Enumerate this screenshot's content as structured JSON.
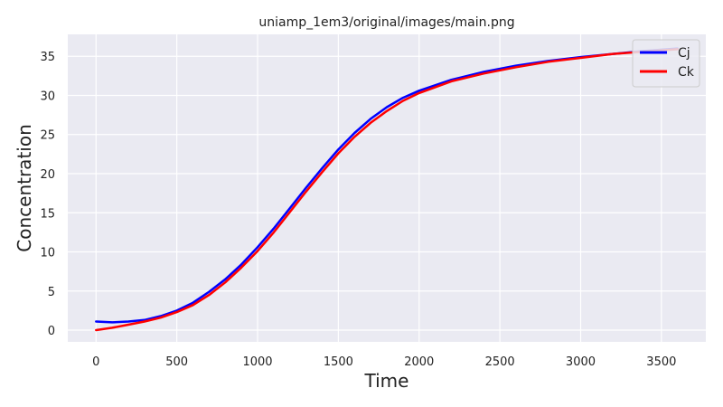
{
  "chart_data": {
    "type": "line",
    "title": "uniamp_1em3/original/images/main.png",
    "xlabel": "Time",
    "ylabel": "Concentration",
    "xlim": [
      -175,
      3775
    ],
    "ylim": [
      -1.5,
      37.8
    ],
    "xticks": [
      0,
      500,
      1000,
      1500,
      2000,
      2500,
      3000,
      3500
    ],
    "yticks": [
      0,
      5,
      10,
      15,
      20,
      25,
      30,
      35
    ],
    "xtick_labels": [
      "0",
      "500",
      "1000",
      "1500",
      "2000",
      "2500",
      "3000",
      "3500"
    ],
    "ytick_labels": [
      "0",
      "5",
      "10",
      "15",
      "20",
      "25",
      "30",
      "35"
    ],
    "grid": true,
    "legend_position": "top-right",
    "background_color": "#eaeaf2",
    "grid_color": "#ffffff",
    "series": [
      {
        "name": "Cj",
        "color": "#0000ff",
        "x": [
          0,
          100,
          200,
          300,
          400,
          500,
          600,
          700,
          800,
          900,
          1000,
          1100,
          1200,
          1300,
          1400,
          1500,
          1600,
          1700,
          1800,
          1900,
          2000,
          2200,
          2400,
          2600,
          2800,
          3000,
          3200,
          3400,
          3600
        ],
        "y": [
          1.1,
          1.0,
          1.1,
          1.3,
          1.8,
          2.5,
          3.5,
          4.9,
          6.5,
          8.4,
          10.6,
          13.0,
          15.6,
          18.2,
          20.7,
          23.1,
          25.2,
          27.0,
          28.5,
          29.7,
          30.6,
          32.0,
          33.0,
          33.8,
          34.4,
          34.9,
          35.3,
          35.7,
          36.0
        ]
      },
      {
        "name": "Ck",
        "color": "#ff0000",
        "x": [
          0,
          100,
          200,
          300,
          400,
          500,
          600,
          700,
          800,
          900,
          1000,
          1100,
          1200,
          1300,
          1400,
          1500,
          1600,
          1700,
          1800,
          1900,
          2000,
          2200,
          2400,
          2600,
          2800,
          3000,
          3200,
          3400,
          3600
        ],
        "y": [
          0.0,
          0.3,
          0.7,
          1.1,
          1.6,
          2.3,
          3.2,
          4.5,
          6.1,
          8.0,
          10.1,
          12.5,
          15.1,
          17.7,
          20.2,
          22.6,
          24.7,
          26.5,
          28.0,
          29.3,
          30.3,
          31.8,
          32.8,
          33.6,
          34.3,
          34.8,
          35.3,
          35.6,
          35.9
        ]
      }
    ]
  }
}
